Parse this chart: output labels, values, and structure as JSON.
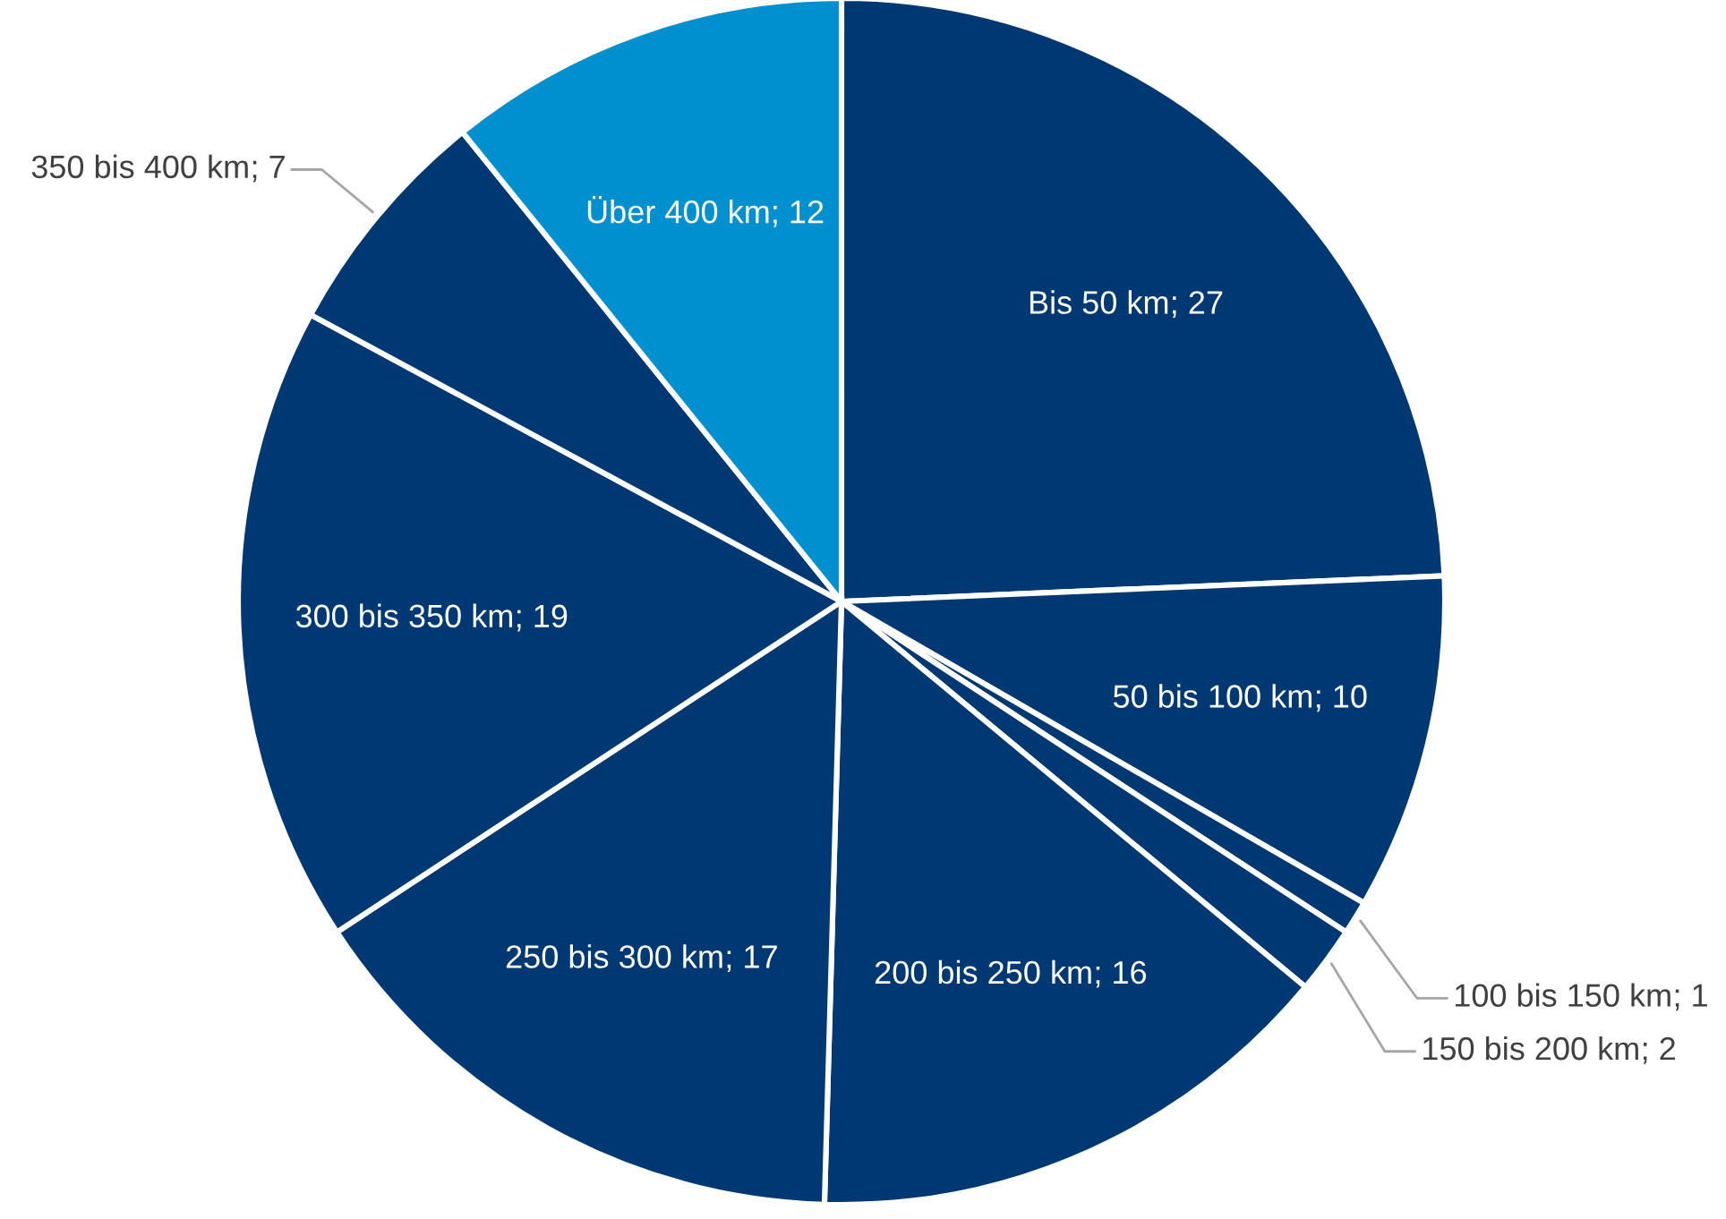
{
  "chart_data": {
    "type": "pie",
    "categories": [
      "Bis 50 km",
      "50 bis 100 km",
      "100 bis 150 km",
      "150 bis 200 km",
      "200 bis 250 km",
      "250 bis 300 km",
      "300 bis 350 km",
      "350 bis 400 km",
      "Über 400 km"
    ],
    "values": [
      27,
      10,
      1,
      2,
      16,
      17,
      19,
      7,
      12
    ],
    "colors": [
      "#003873",
      "#003873",
      "#003873",
      "#003873",
      "#003873",
      "#003873",
      "#003873",
      "#003873",
      "#0090d0"
    ],
    "value_labels": [
      "; 27",
      "; 10",
      "; 1",
      "; 2",
      "; 16",
      "; 17",
      "; 19",
      "; 7",
      "; 12"
    ],
    "legend": false
  }
}
